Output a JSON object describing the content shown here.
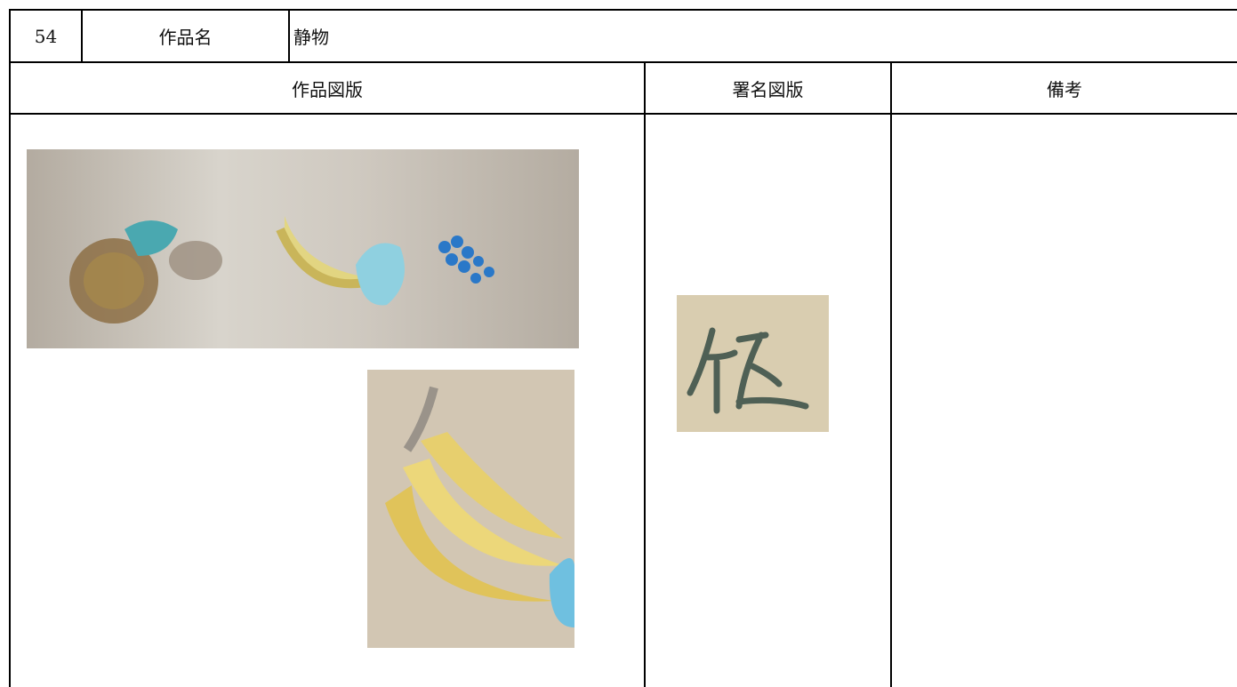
{
  "row": {
    "number": "54",
    "label": "作品名",
    "title": "静物"
  },
  "headers": [
    "作品図版",
    "署名図版",
    "備考"
  ]
}
